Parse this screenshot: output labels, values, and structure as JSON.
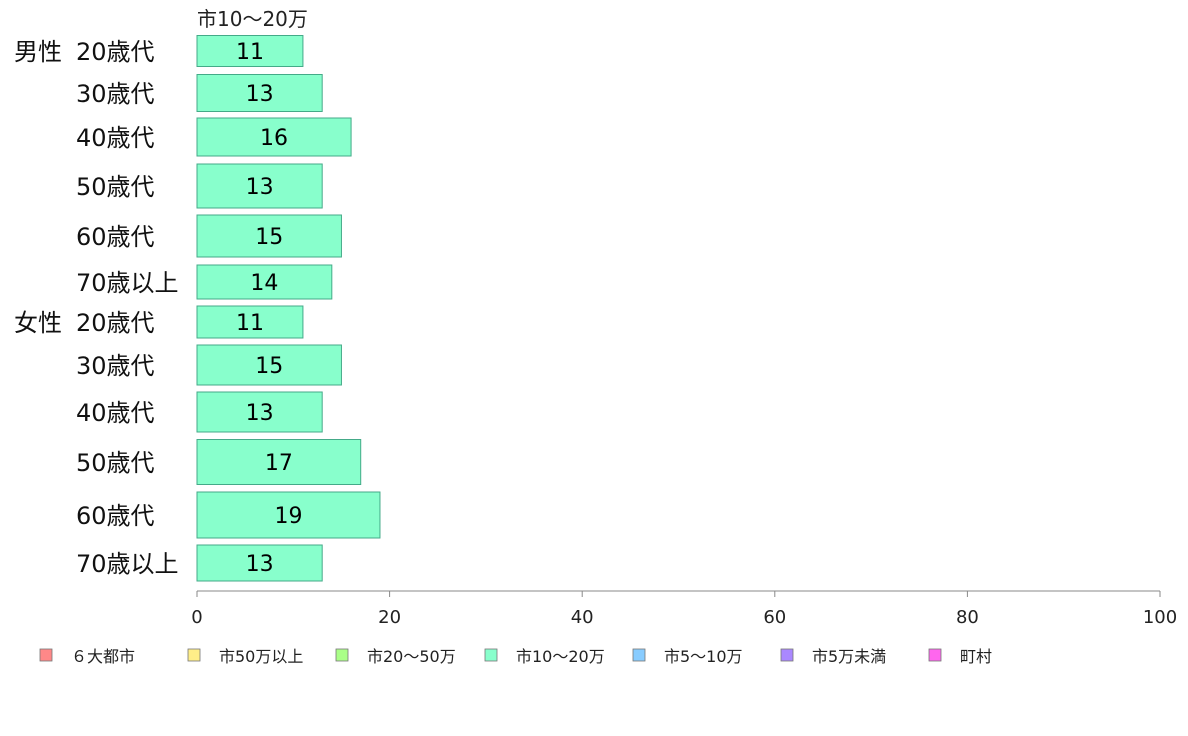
{
  "chart_data": {
    "type": "bar",
    "orientation": "horizontal",
    "series_label": "市10〜20万",
    "groups": [
      {
        "name": "男性",
        "start": 0
      },
      {
        "name": "女性",
        "start": 6
      }
    ],
    "categories": [
      "20歳代",
      "30歳代",
      "40歳代",
      "50歳代",
      "60歳代",
      "70歳以上",
      "20歳代",
      "30歳代",
      "40歳代",
      "50歳代",
      "60歳代",
      "70歳以上"
    ],
    "values": [
      11,
      13,
      16,
      13,
      15,
      14,
      11,
      15,
      13,
      17,
      19,
      13
    ],
    "bar_color": "#88ffcc",
    "bar_stroke": "#44aa88",
    "xlim": [
      0,
      100
    ],
    "xticks": [
      0,
      20,
      40,
      60,
      80,
      100
    ],
    "legend": [
      {
        "label": "６大都市",
        "color": "#ff8888"
      },
      {
        "label": "市50万以上",
        "color": "#ffee88"
      },
      {
        "label": "市20〜50万",
        "color": "#aaff88"
      },
      {
        "label": "市10〜20万",
        "color": "#88ffcc"
      },
      {
        "label": "市5〜10万",
        "color": "#88ccff"
      },
      {
        "label": "市5万未満",
        "color": "#aa88ff"
      },
      {
        "label": "町村",
        "color": "#ff66ee"
      }
    ],
    "legend_position": "bottom"
  }
}
